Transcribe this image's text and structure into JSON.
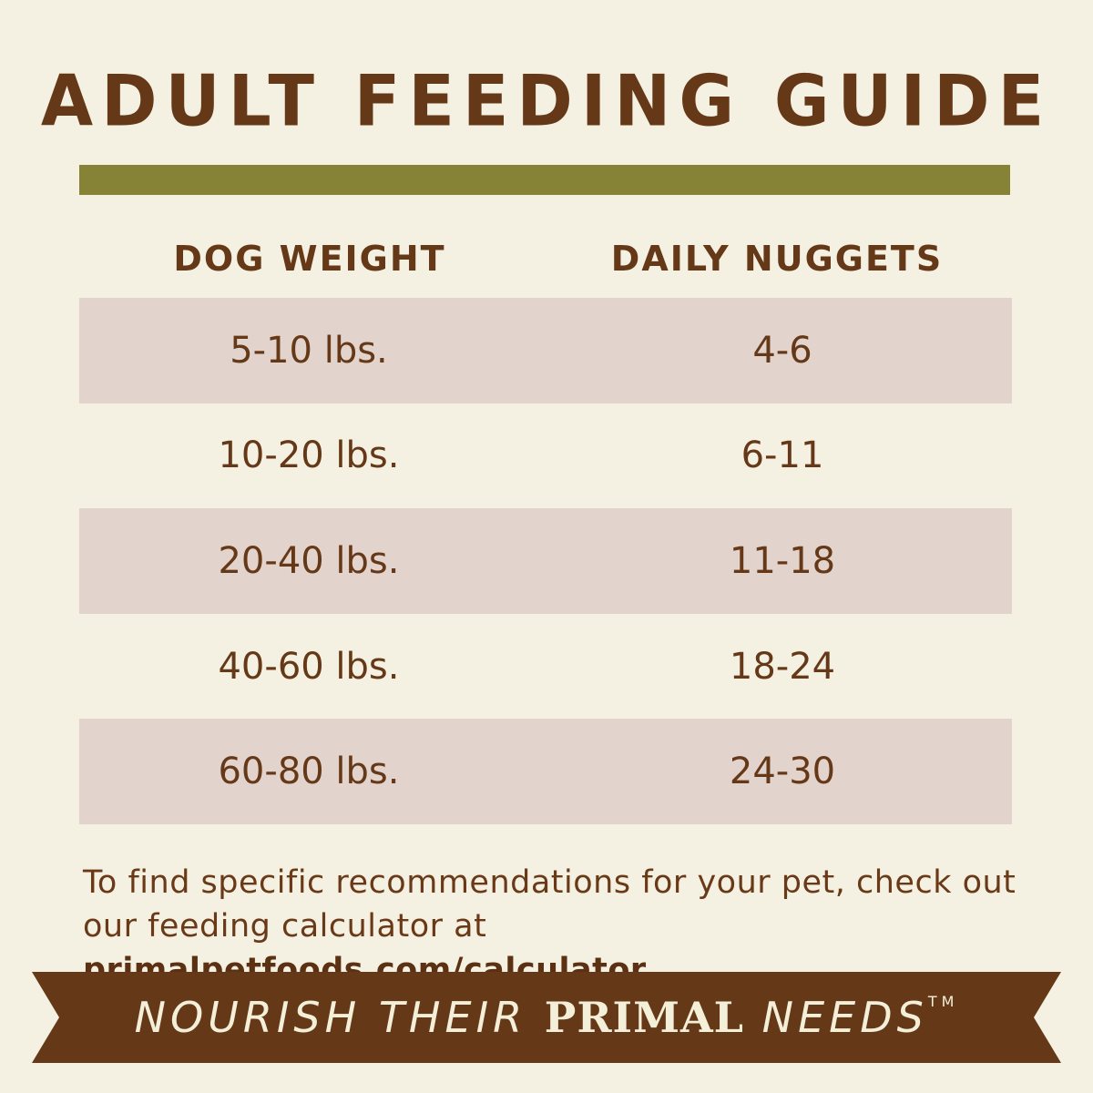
{
  "title": "ADULT FEEDING GUIDE",
  "colors": {
    "background": "#f4f1e3",
    "accent_bar": "#868337",
    "text": "#653817",
    "row_shade": "#e2d3cc",
    "banner": "#653817"
  },
  "table": {
    "headers": [
      "DOG WEIGHT",
      "DAILY NUGGETS"
    ],
    "rows": [
      [
        "5-10 lbs.",
        "4-6"
      ],
      [
        "10-20 lbs.",
        "6-11"
      ],
      [
        "20-40 lbs.",
        "11-18"
      ],
      [
        "40-60 lbs.",
        "18-24"
      ],
      [
        "60-80 lbs.",
        "24-30"
      ]
    ]
  },
  "note": {
    "text": "To find specific recommendations for your pet, check out our feeding calculator at ",
    "link": "primalpetfoods.com/calculator"
  },
  "slogan": {
    "part1": "NOURISH THEIR ",
    "part2": "PRIMAL",
    "part3": " NEEDS",
    "tm": "TM"
  }
}
